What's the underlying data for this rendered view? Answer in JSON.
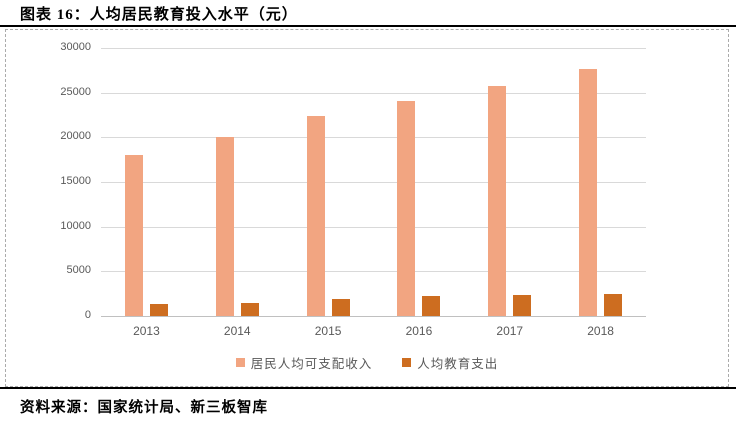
{
  "header": {
    "title": "图表 16：人均居民教育投入水平（元）"
  },
  "footer": {
    "source": "资料来源：国家统计局、新三板智库"
  },
  "colors": {
    "income_bar": "#F2A581",
    "education_bar": "#CD6D20",
    "gridline": "#D9D9D9",
    "baseline": "#C0C0C0",
    "axis_text": "#595959",
    "rule": "#000000"
  },
  "chart_data": {
    "type": "bar",
    "title": "人均居民教育投入水平（元）",
    "categories": [
      "2013",
      "2014",
      "2015",
      "2016",
      "2017",
      "2018"
    ],
    "series": [
      {
        "name": "居民人均可支配收入",
        "color": "#F2A581",
        "values": [
          18000,
          20000,
          22400,
          24100,
          25800,
          27700
        ]
      },
      {
        "name": "人均教育支出",
        "color": "#CD6D20",
        "values": [
          1300,
          1500,
          1900,
          2200,
          2400,
          2500
        ]
      }
    ],
    "xlabel": "",
    "ylabel": "",
    "ylim": [
      0,
      30000
    ],
    "yticks": [
      0,
      5000,
      10000,
      15000,
      20000,
      25000,
      30000
    ],
    "grid": true,
    "legend_position": "bottom"
  }
}
